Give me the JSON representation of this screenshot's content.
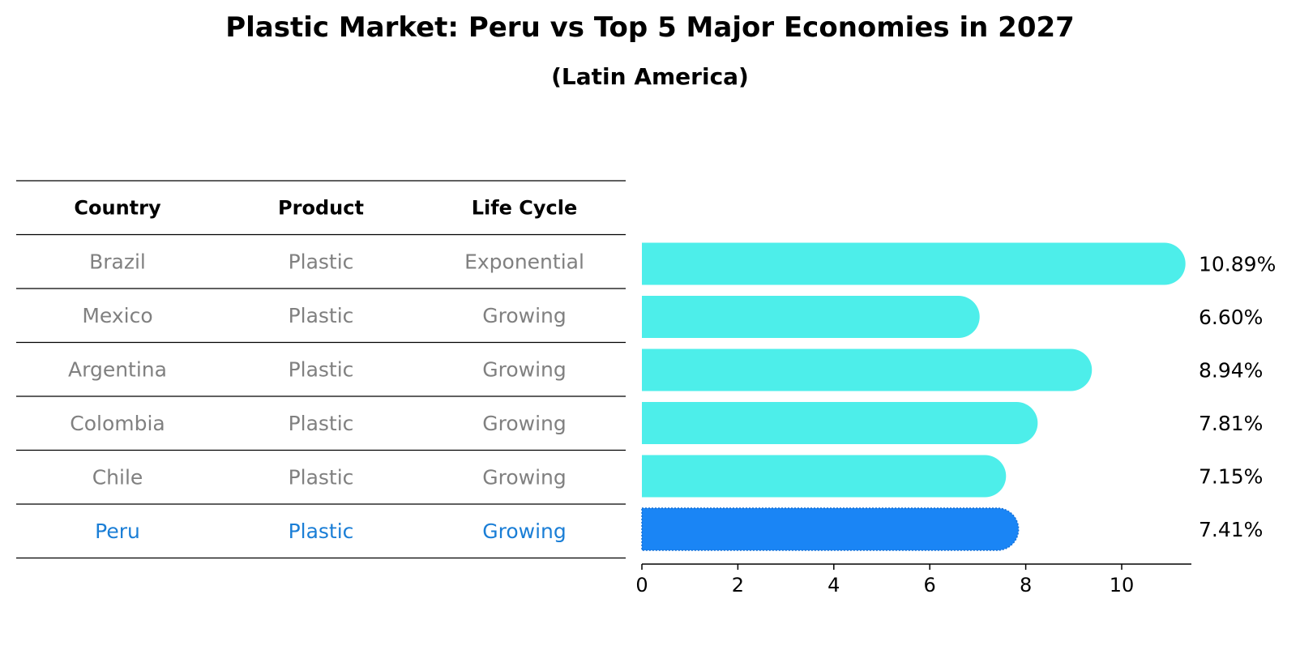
{
  "title": "Plastic Market: Peru vs Top 5 Major Economies in 2027",
  "subtitle": "(Latin America)",
  "colors": {
    "bar": "#4DEEEA",
    "highlight": "#1A85F5",
    "muted_text": "#808080",
    "highlight_text": "#1A7ED6"
  },
  "table": {
    "headers": [
      "Country",
      "Product",
      "Life Cycle"
    ],
    "rows": [
      [
        "Brazil",
        "Plastic",
        "Exponential"
      ],
      [
        "Mexico",
        "Plastic",
        "Growing"
      ],
      [
        "Argentina",
        "Plastic",
        "Growing"
      ],
      [
        "Colombia",
        "Plastic",
        "Growing"
      ],
      [
        "Chile",
        "Plastic",
        "Growing"
      ],
      [
        "Peru",
        "Plastic",
        "Growing"
      ]
    ],
    "highlight_row": 5
  },
  "chart_data": {
    "type": "bar",
    "orientation": "horizontal",
    "categories": [
      "Brazil",
      "Mexico",
      "Argentina",
      "Colombia",
      "Chile",
      "Peru"
    ],
    "values": [
      10.89,
      6.6,
      8.94,
      7.81,
      7.15,
      7.41
    ],
    "labels": [
      "10.89%",
      "6.60%",
      "8.94%",
      "7.81%",
      "7.15%",
      "7.41%"
    ],
    "highlight": "Peru",
    "xticks": [
      "0",
      "2",
      "4",
      "6",
      "8",
      "10"
    ],
    "xlim": [
      0,
      11.4
    ],
    "xlabel": "",
    "ylabel": "",
    "grid": false
  }
}
